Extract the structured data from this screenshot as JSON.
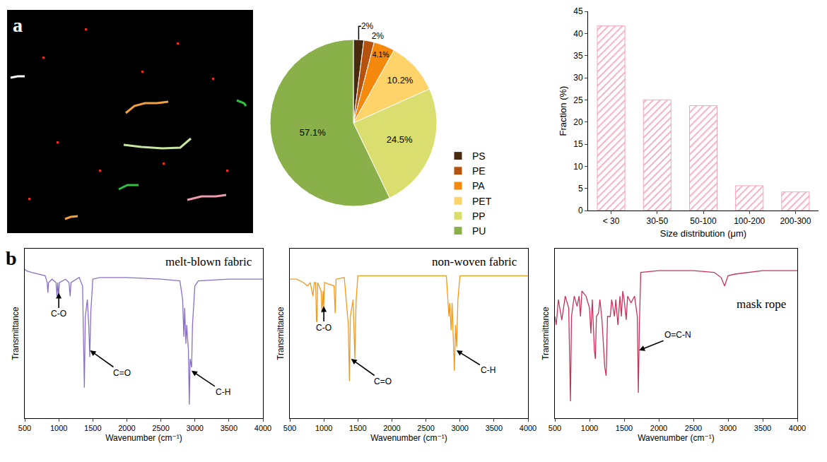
{
  "panel_labels": [
    "a",
    "b"
  ],
  "chart_data": [
    {
      "type": "pie",
      "categories": [
        "PS",
        "PE",
        "PA",
        "PET",
        "PP",
        "PU"
      ],
      "values": [
        2,
        2,
        4.1,
        10.2,
        24.5,
        57.1
      ],
      "value_labels": [
        "2%",
        "2%",
        "4.1%",
        "10.2%",
        "24.5%",
        "57.1%"
      ],
      "colors": [
        "#4a2a0c",
        "#b5520e",
        "#f5890c",
        "#fdd36a",
        "#d9de6e",
        "#8ab04a"
      ],
      "legend": "right"
    },
    {
      "type": "bar",
      "categories": [
        "< 30",
        "30-50",
        "50-100",
        "100-200",
        "200-300"
      ],
      "values": [
        41.7,
        25,
        23.7,
        5.6,
        4.2
      ],
      "color": "#f4a6b8",
      "xlabel": "Size distribution (μm)",
      "ylabel": "Fraction (%)",
      "ylim": [
        0,
        45
      ],
      "yticks": [
        0,
        5,
        10,
        15,
        20,
        25,
        30,
        35,
        40,
        45
      ]
    },
    {
      "type": "line",
      "title": "melt-blown fabric",
      "color": "#8a6fc6",
      "x": [
        500,
        520,
        600,
        700,
        800,
        830,
        840,
        850,
        900,
        960,
        973,
        985,
        997,
        1010,
        1100,
        1150,
        1167,
        1180,
        1300,
        1350,
        1365,
        1376,
        1390,
        1420,
        1440,
        1456,
        1470,
        1500,
        1600,
        2000,
        2500,
        2780,
        2820,
        2838,
        2850,
        2868,
        2880,
        2905,
        2918,
        2930,
        2952,
        2965,
        3000,
        3050,
        3500,
        4000
      ],
      "values": [
        88,
        87,
        86,
        85,
        84,
        80,
        74,
        80,
        82,
        80,
        72,
        80,
        72,
        80,
        82,
        80,
        72,
        80,
        83,
        78,
        45,
        18,
        60,
        70,
        55,
        36,
        62,
        82,
        83,
        83,
        82,
        81,
        70,
        48,
        65,
        44,
        55,
        40,
        8,
        35,
        30,
        55,
        78,
        81,
        82,
        82
      ],
      "xlim": [
        500,
        4000
      ],
      "xticks": [
        500,
        1000,
        1500,
        2000,
        2500,
        3000,
        3500,
        4000
      ],
      "ylim": [
        0,
        100
      ],
      "tick_labels": "x",
      "xlabel": "Wavenumber (cm⁻¹)",
      "ylabel": "Transmittance",
      "annotations": [
        {
          "text": "C-O",
          "x": 1000,
          "y": 74
        },
        {
          "text": "C=O",
          "x": 1460,
          "y": 40
        },
        {
          "text": "C-H",
          "x": 2950,
          "y": 28
        }
      ]
    },
    {
      "type": "line",
      "title": "non-woven fabric",
      "color": "#f39a1e",
      "x": [
        500,
        600,
        700,
        760,
        800,
        840,
        860,
        880,
        895,
        910,
        960,
        973,
        990,
        997,
        1010,
        1150,
        1167,
        1180,
        1300,
        1360,
        1376,
        1390,
        1430,
        1456,
        1475,
        1500,
        2000,
        2500,
        2800,
        2838,
        2850,
        2870,
        2885,
        2918,
        2935,
        2952,
        2970,
        3000,
        4000
      ],
      "values": [
        82,
        82,
        80,
        78,
        80,
        72,
        80,
        80,
        50,
        80,
        75,
        62,
        75,
        65,
        80,
        78,
        62,
        82,
        83,
        55,
        22,
        60,
        70,
        35,
        70,
        84,
        84,
        84,
        84,
        60,
        68,
        52,
        68,
        28,
        55,
        42,
        70,
        84,
        84
      ],
      "xlim": [
        500,
        4000
      ],
      "xticks": [
        500,
        1000,
        1500,
        2000,
        2500,
        3000,
        3500,
        4000
      ],
      "ylim": [
        0,
        100
      ],
      "tick_labels": "x",
      "xlabel": "Wavenumber (cm⁻¹)",
      "ylabel": "Transmittance",
      "annotations": [
        {
          "text": "C-O",
          "x": 1000,
          "y": 66
        },
        {
          "text": "C=O",
          "x": 1400,
          "y": 35
        },
        {
          "text": "C-H",
          "x": 2950,
          "y": 40
        }
      ]
    },
    {
      "type": "line",
      "title": "mask rope",
      "color": "#c8325a",
      "x": [
        500,
        520,
        550,
        600,
        650,
        700,
        725,
        740,
        780,
        820,
        850,
        870,
        890,
        950,
        1000,
        1020,
        1040,
        1070,
        1085,
        1100,
        1130,
        1150,
        1180,
        1220,
        1240,
        1260,
        1300,
        1320,
        1360,
        1380,
        1410,
        1440,
        1460,
        1480,
        1500,
        1530,
        1550,
        1600,
        1650,
        1690,
        1705,
        1720,
        1740,
        2000,
        2500,
        2800,
        2900,
        2950,
        3000,
        3100,
        3500,
        4000
      ],
      "values": [
        60,
        55,
        70,
        58,
        72,
        65,
        10,
        60,
        72,
        66,
        72,
        60,
        75,
        72,
        65,
        50,
        70,
        40,
        35,
        60,
        62,
        70,
        58,
        30,
        25,
        60,
        60,
        70,
        60,
        70,
        55,
        72,
        60,
        75,
        70,
        58,
        72,
        68,
        72,
        60,
        15,
        55,
        86,
        87,
        87,
        86,
        83,
        78,
        84,
        85,
        87,
        87
      ],
      "xlim": [
        500,
        4000
      ],
      "xticks": [
        500,
        1000,
        1500,
        2000,
        2500,
        3000,
        3500,
        4000
      ],
      "ylim": [
        0,
        100
      ],
      "tick_labels": "x",
      "xlabel": "Wavenumber (cm⁻¹)",
      "ylabel": "Transmittance",
      "annotations": [
        {
          "text": "O=C-N",
          "x": 1715,
          "y": 40
        }
      ]
    }
  ]
}
